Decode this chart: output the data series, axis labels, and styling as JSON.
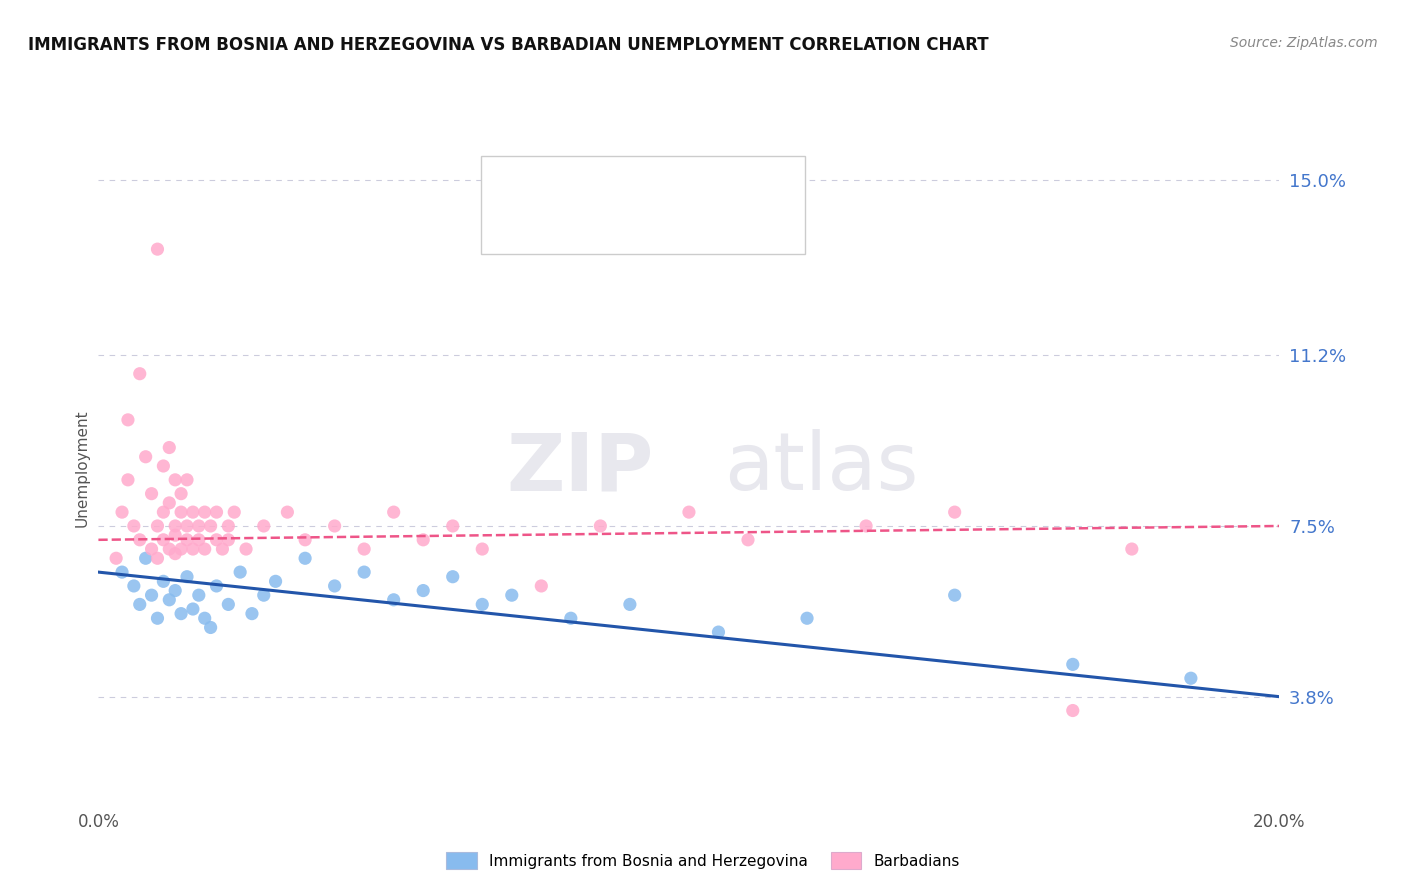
{
  "title": "IMMIGRANTS FROM BOSNIA AND HERZEGOVINA VS BARBADIAN UNEMPLOYMENT CORRELATION CHART",
  "source": "Source: ZipAtlas.com",
  "ylabel": "Unemployment",
  "xlim": [
    0.0,
    20.0
  ],
  "ylim": [
    1.5,
    16.0
  ],
  "yticks": [
    3.8,
    7.5,
    11.2,
    15.0
  ],
  "xticks": [
    0.0,
    20.0
  ],
  "blue_color": "#88BBEE",
  "pink_color": "#FFAACC",
  "trend_blue": "#2255AA",
  "trend_pink": "#EE5588",
  "legend_label_blue": "Immigrants from Bosnia and Herzegovina",
  "legend_label_pink": "Barbadians",
  "watermark_zip": "ZIP",
  "watermark_atlas": "atlas",
  "grid_color": "#CCCCDD",
  "background_color": "#FFFFFF",
  "blue_scatter": [
    [
      0.4,
      6.5
    ],
    [
      0.6,
      6.2
    ],
    [
      0.7,
      5.8
    ],
    [
      0.8,
      6.8
    ],
    [
      0.9,
      6.0
    ],
    [
      1.0,
      5.5
    ],
    [
      1.1,
      6.3
    ],
    [
      1.2,
      5.9
    ],
    [
      1.3,
      6.1
    ],
    [
      1.4,
      5.6
    ],
    [
      1.5,
      6.4
    ],
    [
      1.6,
      5.7
    ],
    [
      1.7,
      6.0
    ],
    [
      1.8,
      5.5
    ],
    [
      1.9,
      5.3
    ],
    [
      2.0,
      6.2
    ],
    [
      2.2,
      5.8
    ],
    [
      2.4,
      6.5
    ],
    [
      2.6,
      5.6
    ],
    [
      2.8,
      6.0
    ],
    [
      3.0,
      6.3
    ],
    [
      3.5,
      6.8
    ],
    [
      4.0,
      6.2
    ],
    [
      4.5,
      6.5
    ],
    [
      5.0,
      5.9
    ],
    [
      5.5,
      6.1
    ],
    [
      6.0,
      6.4
    ],
    [
      6.5,
      5.8
    ],
    [
      7.0,
      6.0
    ],
    [
      8.0,
      5.5
    ],
    [
      9.0,
      5.8
    ],
    [
      10.5,
      5.2
    ],
    [
      12.0,
      5.5
    ],
    [
      14.5,
      6.0
    ],
    [
      16.5,
      4.5
    ],
    [
      18.5,
      4.2
    ]
  ],
  "pink_scatter": [
    [
      0.3,
      6.8
    ],
    [
      0.4,
      7.8
    ],
    [
      0.5,
      9.8
    ],
    [
      0.5,
      8.5
    ],
    [
      0.6,
      7.5
    ],
    [
      0.7,
      10.8
    ],
    [
      0.7,
      7.2
    ],
    [
      0.8,
      9.0
    ],
    [
      0.9,
      7.0
    ],
    [
      0.9,
      8.2
    ],
    [
      1.0,
      7.5
    ],
    [
      1.0,
      6.8
    ],
    [
      1.0,
      13.5
    ],
    [
      1.1,
      7.2
    ],
    [
      1.1,
      7.8
    ],
    [
      1.1,
      8.8
    ],
    [
      1.2,
      7.0
    ],
    [
      1.2,
      8.0
    ],
    [
      1.2,
      9.2
    ],
    [
      1.3,
      7.5
    ],
    [
      1.3,
      8.5
    ],
    [
      1.3,
      6.9
    ],
    [
      1.3,
      7.3
    ],
    [
      1.4,
      7.8
    ],
    [
      1.4,
      8.2
    ],
    [
      1.4,
      7.0
    ],
    [
      1.5,
      7.5
    ],
    [
      1.5,
      7.2
    ],
    [
      1.5,
      8.5
    ],
    [
      1.6,
      7.8
    ],
    [
      1.6,
      7.0
    ],
    [
      1.7,
      7.5
    ],
    [
      1.7,
      7.2
    ],
    [
      1.8,
      7.8
    ],
    [
      1.8,
      7.0
    ],
    [
      1.9,
      7.5
    ],
    [
      2.0,
      7.2
    ],
    [
      2.0,
      7.8
    ],
    [
      2.1,
      7.0
    ],
    [
      2.2,
      7.5
    ],
    [
      2.2,
      7.2
    ],
    [
      2.3,
      7.8
    ],
    [
      2.5,
      7.0
    ],
    [
      2.8,
      7.5
    ],
    [
      3.2,
      7.8
    ],
    [
      3.5,
      7.2
    ],
    [
      4.0,
      7.5
    ],
    [
      4.5,
      7.0
    ],
    [
      5.0,
      7.8
    ],
    [
      5.5,
      7.2
    ],
    [
      6.0,
      7.5
    ],
    [
      6.5,
      7.0
    ],
    [
      7.5,
      6.2
    ],
    [
      8.5,
      7.5
    ],
    [
      10.0,
      7.8
    ],
    [
      11.0,
      7.2
    ],
    [
      13.0,
      7.5
    ],
    [
      14.5,
      7.8
    ],
    [
      16.5,
      3.5
    ],
    [
      17.5,
      7.0
    ]
  ]
}
